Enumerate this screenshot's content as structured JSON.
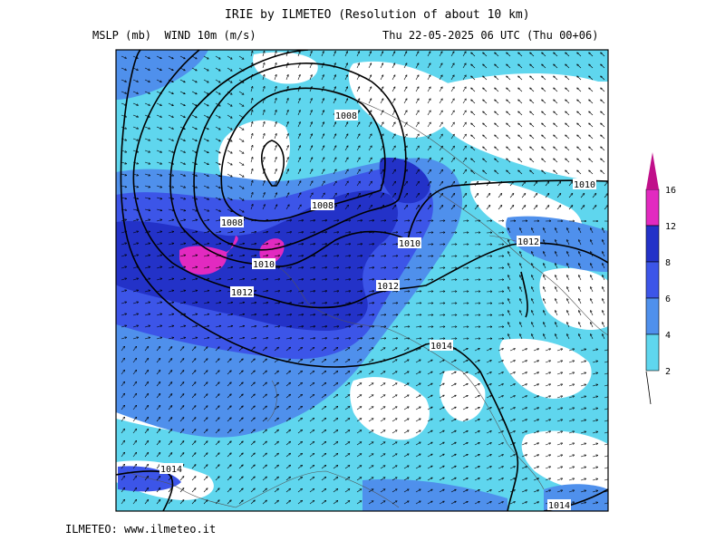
{
  "header": {
    "title": "IRIE by ILMETEO (Resolution of about 10 km)",
    "fields": "MSLP (mb)  WIND 10m (m/s)",
    "valid_time": "Thu 22-05-2025 06 UTC (Thu 00+06)"
  },
  "footer": {
    "credit": "ILMETEO: www.ilmeteo.it"
  },
  "isobars": [
    {
      "value": "1008",
      "label": "1008"
    },
    {
      "value": "1008",
      "label": "1008"
    },
    {
      "value": "1008",
      "label": "1008"
    },
    {
      "value": "1010",
      "label": "1010"
    },
    {
      "value": "1010",
      "label": "1010"
    },
    {
      "value": "1010",
      "label": "1010"
    },
    {
      "value": "1012",
      "label": "1012"
    },
    {
      "value": "1012",
      "label": "1012"
    },
    {
      "value": "1012",
      "label": "1012"
    },
    {
      "value": "1014",
      "label": "1014"
    },
    {
      "value": "1014",
      "label": "1014"
    },
    {
      "value": "1014",
      "label": "1014"
    }
  ],
  "colorbar": {
    "labels": [
      "16",
      "12",
      "8",
      "6",
      "4",
      "2"
    ],
    "bins": [
      {
        "from": 12,
        "to": 16,
        "color": "#e22ac0"
      },
      {
        "from": 8,
        "to": 12,
        "color": "#2332c8"
      },
      {
        "from": 6,
        "to": 8,
        "color": "#3c55e8"
      },
      {
        "from": 4,
        "to": 6,
        "color": "#4f90ec"
      },
      {
        "from": 2,
        "to": 4,
        "color": "#5fd6ee"
      }
    ],
    "over_color": "#c0108a"
  },
  "colors": {
    "calm": "#ffffff",
    "wind_2_4": "#5fd6ee",
    "wind_4_6": "#4f90ec",
    "wind_6_8": "#3c55e8",
    "wind_8_12": "#2332c8",
    "wind_12_16": "#e22ac0"
  }
}
